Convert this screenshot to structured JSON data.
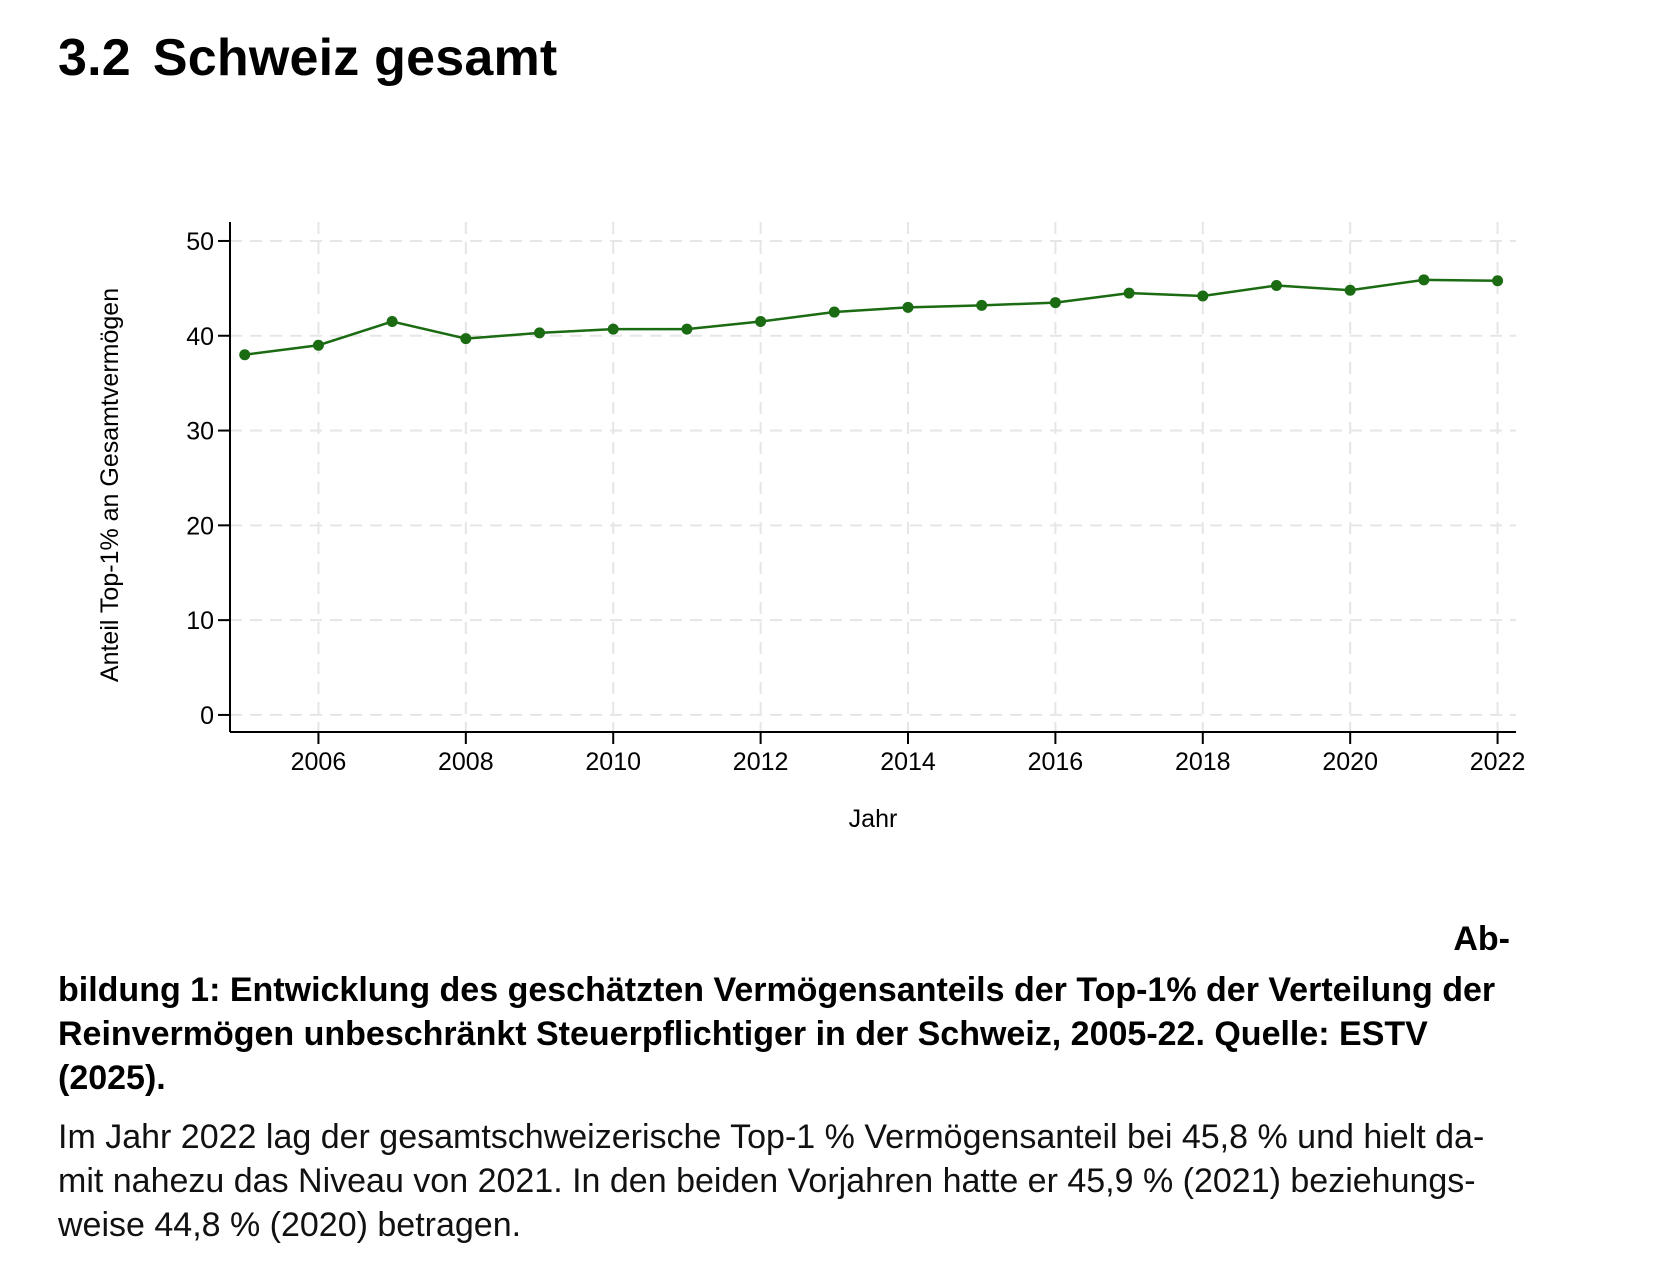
{
  "section": {
    "number": "3.2",
    "title": "Schweiz gesamt"
  },
  "chart_data": {
    "type": "line",
    "title": "",
    "xlabel": "Jahr",
    "ylabel": "Anteil Top-1% an Gesamtvermögen",
    "x": [
      2005,
      2006,
      2007,
      2008,
      2009,
      2010,
      2011,
      2012,
      2013,
      2014,
      2015,
      2016,
      2017,
      2018,
      2019,
      2020,
      2021,
      2022
    ],
    "series": [
      {
        "values": [
          38.0,
          39.0,
          41.5,
          39.7,
          40.3,
          40.7,
          40.7,
          41.5,
          42.5,
          43.0,
          43.2,
          43.5,
          44.5,
          44.2,
          45.3,
          44.8,
          45.9,
          45.8
        ]
      }
    ],
    "xticks": [
      "2006",
      "2008",
      "2010",
      "2012",
      "2014",
      "2016",
      "2018",
      "2020",
      "2022"
    ],
    "yticks": [
      "0",
      "10",
      "20",
      "30",
      "40",
      "50"
    ],
    "xlim": [
      2004.8,
      2022.25
    ],
    "ylim": [
      -1.8,
      52
    ],
    "grid": true,
    "colors": {
      "line": "#1a6b12",
      "grid": "#e6e6e6",
      "axis": "#000000"
    }
  },
  "caption": {
    "prefix": "Ab-",
    "lines": [
      "bildung 1: Entwicklung des geschätzten Vermögensanteils der Top-1% der Verteilung der",
      "Reinvermögen unbeschränkt Steuerpflichtiger in der Schweiz, 2005-22. Quelle: ESTV",
      "(2025)."
    ]
  },
  "body": {
    "lines": [
      "Im Jahr 2022 lag der gesamtschweizerische Top-1 % Vermögensanteil bei 45,8 % und hielt da-",
      "mit nahezu das Niveau von 2021. In den beiden Vorjahren hatte er 45,9 % (2021) beziehungs-",
      "weise 44,8 % (2020) betragen."
    ]
  }
}
